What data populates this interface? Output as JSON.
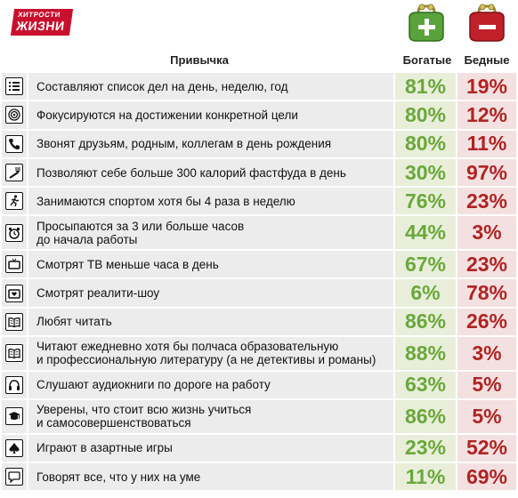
{
  "logo": {
    "line1": "ХИТРОСТИ",
    "line2": "ЖИЗНИ"
  },
  "header": {
    "habit": "Привычка",
    "rich": "Богатые",
    "poor": "Бедные"
  },
  "colors": {
    "rich": "#6aa83a",
    "poor": "#b02323",
    "logo": "#c8102e"
  },
  "rows": [
    {
      "icon": "list-icon",
      "text": "Составляют список дел на день, неделю, год",
      "rich": "81%",
      "poor": "19%"
    },
    {
      "icon": "target-icon",
      "text": "Фокусируются на достижении конкретной цели",
      "rich": "80%",
      "poor": "12%"
    },
    {
      "icon": "phone-icon",
      "text": "Звонят друзьям, родным, коллегам в день рождения",
      "rich": "80%",
      "poor": "11%"
    },
    {
      "icon": "fork-icon",
      "text": "Позволяют себе больше 300 калорий фастфуда в день",
      "rich": "30%",
      "poor": "97%"
    },
    {
      "icon": "runner-icon",
      "text": "Занимаются спортом хотя бы 4 раза в неделю",
      "rich": "76%",
      "poor": "23%"
    },
    {
      "icon": "alarm-clock-icon",
      "text": "Просыпаются за 3 или больше часов\nдо начала работы",
      "rich": "44%",
      "poor": "3%"
    },
    {
      "icon": "tv-icon",
      "text": "Смотрят ТВ меньше часа в день",
      "rich": "67%",
      "poor": "23%"
    },
    {
      "icon": "tv-heart-icon",
      "text": "Смотрят реалити-шоу",
      "rich": "6%",
      "poor": "78%"
    },
    {
      "icon": "book-icon",
      "text": "Любят читать",
      "rich": "86%",
      "poor": "26%"
    },
    {
      "icon": "book-icon",
      "text": "Читают ежедневно хотя бы полчаса образовательную\nи профессиональную литературу (а не детективы и романы)",
      "rich": "88%",
      "poor": "3%"
    },
    {
      "icon": "headphones-icon",
      "text": "Слушают аудиокниги по дороге на работу",
      "rich": "63%",
      "poor": "5%"
    },
    {
      "icon": "graduation-cap-icon",
      "text": "Уверены, что стоит всю жизнь учиться\nи самосовершенствоваться",
      "rich": "86%",
      "poor": "5%"
    },
    {
      "icon": "spade-icon",
      "text": "Играют в азартные игры",
      "rich": "23%",
      "poor": "52%"
    },
    {
      "icon": "speech-icon",
      "text": "Говорят все, что у них на уме",
      "rich": "11%",
      "poor": "69%"
    }
  ]
}
